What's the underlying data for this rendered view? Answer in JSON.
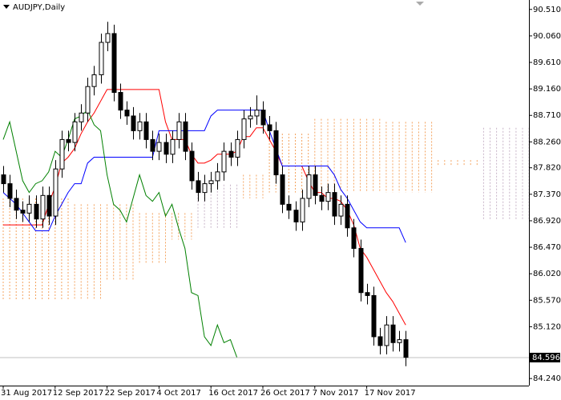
{
  "chart_data": {
    "type": "candlestick",
    "title": "AUDJPY,Daily",
    "categories": [
      "31 Aug 2017",
      null,
      null,
      null,
      null,
      null,
      null,
      null,
      "12 Sep 2017",
      null,
      null,
      null,
      null,
      null,
      null,
      null,
      "22 Sep 2017",
      null,
      null,
      null,
      null,
      null,
      null,
      null,
      "4 Oct 2017",
      null,
      null,
      null,
      null,
      null,
      null,
      null,
      "16 Oct 2017",
      null,
      null,
      null,
      null,
      null,
      null,
      null,
      "26 Oct 2017",
      null,
      null,
      null,
      null,
      null,
      null,
      null,
      "7 Nov 2017",
      null,
      null,
      null,
      null,
      null,
      null,
      null,
      "17 Nov 2017",
      null,
      null,
      null,
      null,
      null,
      null,
      null,
      null,
      null,
      null,
      null,
      null,
      null,
      null,
      null,
      null,
      null,
      null,
      null,
      null,
      null,
      null,
      null,
      null,
      null,
      null,
      null
    ],
    "open": [
      87.7,
      87.55,
      87.3,
      87.1,
      87.05,
      87.2,
      86.95,
      87.35,
      87.0,
      87.8,
      88.3,
      88.25,
      88.6,
      88.75,
      89.2,
      89.4,
      89.95,
      90.1,
      89.1,
      88.8,
      88.7,
      88.45,
      88.6,
      88.3,
      88.1,
      88.25,
      88.05,
      88.3,
      88.6,
      88.1,
      87.6,
      87.4,
      87.55,
      87.6,
      87.75,
      88.1,
      88.0,
      88.3,
      88.65,
      88.7,
      88.8,
      88.55,
      88.45,
      87.7,
      87.2,
      87.1,
      86.9,
      87.3,
      87.7,
      87.35,
      87.25,
      87.4,
      87.0,
      87.2,
      86.8,
      86.45,
      85.7,
      85.65,
      84.95,
      84.8,
      85.15,
      84.85,
      84.9,
      null,
      null,
      null,
      null,
      null,
      null,
      null,
      null,
      null,
      null,
      null,
      null,
      null,
      null,
      null,
      null,
      null,
      null,
      null,
      null,
      null
    ],
    "high": [
      87.85,
      87.7,
      87.45,
      87.25,
      87.35,
      87.35,
      87.5,
      87.5,
      87.95,
      88.45,
      88.45,
      88.75,
      88.9,
      89.35,
      89.55,
      90.1,
      90.3,
      90.25,
      89.25,
      88.95,
      88.85,
      88.75,
      88.75,
      88.45,
      88.4,
      88.4,
      88.45,
      88.75,
      88.75,
      88.25,
      87.75,
      87.7,
      87.75,
      87.9,
      88.25,
      88.25,
      88.45,
      88.8,
      88.85,
      89.05,
      88.95,
      88.7,
      88.6,
      87.85,
      87.35,
      87.25,
      87.45,
      87.85,
      87.85,
      87.5,
      87.55,
      87.55,
      87.35,
      87.35,
      86.95,
      86.6,
      85.85,
      85.8,
      85.1,
      85.3,
      85.3,
      85.05,
      85.05,
      null,
      null,
      null,
      null,
      null,
      null,
      null,
      null,
      null,
      null,
      null,
      null,
      null,
      null,
      null,
      null,
      null,
      null,
      null,
      null,
      null
    ],
    "low": [
      87.4,
      87.15,
      86.95,
      86.9,
      86.9,
      86.8,
      86.8,
      86.85,
      86.85,
      87.65,
      88.1,
      88.1,
      88.45,
      88.6,
      89.05,
      89.25,
      89.8,
      88.95,
      88.65,
      88.55,
      88.3,
      88.3,
      88.15,
      87.95,
      87.95,
      87.9,
      87.9,
      88.15,
      87.95,
      87.45,
      87.25,
      87.25,
      87.4,
      87.45,
      87.6,
      87.85,
      87.85,
      88.15,
      88.5,
      88.55,
      88.4,
      88.3,
      87.55,
      87.05,
      86.95,
      86.75,
      86.75,
      87.15,
      87.2,
      87.1,
      87.1,
      86.85,
      86.85,
      86.65,
      86.3,
      85.55,
      85.5,
      84.8,
      84.65,
      84.65,
      84.7,
      84.7,
      84.45,
      null,
      null,
      null,
      null,
      null,
      null,
      null,
      null,
      null,
      null,
      null,
      null,
      null,
      null,
      null,
      null,
      null,
      null,
      null,
      null,
      null
    ],
    "close": [
      87.55,
      87.3,
      87.1,
      87.05,
      87.2,
      86.95,
      87.35,
      87.0,
      87.8,
      88.3,
      88.25,
      88.6,
      88.75,
      89.2,
      89.4,
      89.95,
      90.1,
      89.1,
      88.8,
      88.7,
      88.45,
      88.6,
      88.3,
      88.1,
      88.25,
      88.05,
      88.3,
      88.6,
      88.1,
      87.6,
      87.4,
      87.55,
      87.6,
      87.75,
      88.1,
      88.0,
      88.3,
      88.65,
      88.7,
      88.8,
      88.55,
      88.45,
      87.7,
      87.2,
      87.1,
      86.9,
      87.3,
      87.7,
      87.35,
      87.25,
      87.4,
      87.0,
      87.2,
      86.8,
      86.45,
      85.7,
      85.65,
      84.95,
      84.8,
      85.15,
      84.85,
      84.9,
      84.6,
      null,
      null,
      null,
      null,
      null,
      null,
      null,
      null,
      null,
      null,
      null,
      null,
      null,
      null,
      null,
      null,
      null,
      null,
      null,
      null,
      null
    ],
    "up_color": "#ffffff",
    "down_color": "#000000",
    "lines": [
      {
        "color": "#ff0000",
        "values": [
          86.85,
          86.85,
          86.85,
          86.85,
          86.85,
          86.85,
          86.85,
          87.2,
          87.5,
          87.9,
          88.0,
          88.15,
          88.4,
          88.6,
          88.75,
          88.95,
          89.15,
          89.15,
          89.15,
          89.15,
          89.15,
          89.15,
          89.15,
          89.15,
          89.15,
          88.6,
          88.3,
          88.3,
          88.3,
          88.05,
          87.9,
          87.9,
          87.95,
          88.05,
          88.05,
          88.05,
          88.1,
          88.35,
          88.35,
          88.5,
          88.5,
          88.3,
          88.1,
          87.85,
          87.85,
          87.85,
          87.85,
          87.6,
          87.4,
          87.4,
          87.3,
          87.3,
          87.25,
          87.1,
          86.85,
          86.45,
          86.3,
          86.1,
          85.9,
          85.7,
          85.55,
          85.35,
          85.15,
          null,
          null,
          null,
          null,
          null,
          null,
          null,
          null,
          null,
          null,
          null,
          null,
          null,
          null,
          null,
          null,
          null,
          null,
          null,
          null,
          null
        ]
      },
      {
        "color": "#0000ff",
        "values": [
          87.4,
          87.3,
          87.2,
          87.05,
          86.9,
          86.75,
          86.75,
          86.75,
          87.0,
          87.2,
          87.4,
          87.55,
          87.55,
          87.9,
          88.0,
          88.0,
          88.0,
          88.0,
          88.0,
          88.0,
          88.0,
          88.0,
          88.0,
          88.0,
          88.45,
          88.45,
          88.45,
          88.45,
          88.45,
          88.45,
          88.45,
          88.45,
          88.7,
          88.8,
          88.8,
          88.8,
          88.8,
          88.8,
          88.8,
          88.8,
          88.8,
          88.45,
          88.15,
          87.85,
          87.85,
          87.85,
          87.85,
          87.85,
          87.85,
          87.85,
          87.85,
          87.7,
          87.45,
          87.3,
          87.1,
          86.9,
          86.8,
          86.8,
          86.8,
          86.8,
          86.8,
          86.8,
          86.55,
          null,
          null,
          null,
          null,
          null,
          null,
          null,
          null,
          null,
          null,
          null,
          null,
          null,
          null,
          null,
          null,
          null,
          null,
          null,
          null,
          null
        ]
      },
      {
        "color": "#008000",
        "values": [
          88.3,
          88.6,
          88.1,
          87.6,
          87.4,
          87.55,
          87.6,
          87.75,
          88.1,
          88.0,
          88.3,
          88.65,
          88.7,
          88.8,
          88.55,
          88.45,
          87.7,
          87.2,
          87.1,
          86.9,
          87.3,
          87.7,
          87.35,
          87.25,
          87.4,
          87.0,
          87.2,
          86.8,
          86.45,
          85.7,
          85.65,
          84.95,
          84.8,
          85.15,
          84.85,
          84.9,
          84.6,
          null,
          null,
          null,
          null,
          null,
          null,
          null,
          null,
          null,
          null,
          null,
          null,
          null,
          null,
          null,
          null,
          null,
          null,
          null,
          null,
          null,
          null,
          null,
          null,
          null,
          null,
          null,
          null,
          null,
          null,
          null,
          null,
          null,
          null,
          null,
          null,
          null,
          null,
          null,
          null,
          null,
          null,
          null,
          null,
          null,
          null,
          null
        ]
      }
    ],
    "cloud": {
      "up_color": "#f4a460",
      "down_color": "#c8b4c8",
      "span_a": [
        87.3,
        87.3,
        87.3,
        87.3,
        87.3,
        87.3,
        87.3,
        87.3,
        87.3,
        87.3,
        87.3,
        87.2,
        87.2,
        87.2,
        87.2,
        87.2,
        87.2,
        87.2,
        87.2,
        87.2,
        87.2,
        87.05,
        87.05,
        87.05,
        87.05,
        87.05,
        87.05,
        87.05,
        87.05,
        87.05,
        86.8,
        86.8,
        86.8,
        86.8,
        86.8,
        86.8,
        86.8,
        87.7,
        87.7,
        87.7,
        87.7,
        88.4,
        88.4,
        88.4,
        88.4,
        88.4,
        88.4,
        88.4,
        88.65,
        88.65,
        88.65,
        88.65,
        88.65,
        88.65,
        88.65,
        88.65,
        88.65,
        88.65,
        88.65,
        88.6,
        88.6,
        88.6,
        88.6,
        88.6,
        88.6,
        88.6,
        88.6,
        87.95,
        87.95,
        87.95,
        87.95,
        87.95,
        87.95,
        87.95,
        86.95,
        86.95,
        86.95,
        86.95,
        86.95,
        86.95,
        86.95,
        86.95,
        86.95,
        86.95
      ],
      "span_b": [
        85.57,
        85.57,
        85.57,
        85.57,
        85.57,
        85.57,
        85.57,
        85.57,
        85.57,
        85.57,
        85.57,
        85.57,
        85.57,
        85.57,
        85.57,
        85.57,
        85.9,
        85.9,
        85.9,
        85.9,
        85.9,
        86.2,
        86.2,
        86.2,
        86.2,
        86.2,
        86.6,
        86.6,
        86.6,
        86.6,
        87.55,
        87.55,
        87.55,
        87.55,
        87.55,
        87.55,
        87.55,
        87.3,
        87.3,
        87.3,
        87.3,
        87.4,
        87.4,
        87.4,
        87.4,
        87.4,
        87.4,
        87.4,
        87.4,
        87.4,
        87.4,
        87.4,
        87.4,
        87.4,
        87.4,
        87.4,
        87.4,
        87.4,
        87.4,
        87.4,
        87.4,
        87.4,
        87.4,
        87.4,
        87.4,
        87.4,
        87.4,
        87.85,
        87.85,
        87.85,
        87.85,
        87.85,
        87.85,
        87.85,
        88.5,
        88.5,
        88.5,
        88.5,
        88.5,
        88.5,
        88.5,
        88.5,
        88.5,
        88.5
      ]
    },
    "current_price": 84.596,
    "ylim": [
      84.12,
      90.67
    ],
    "yticks": [
      {
        "value": 90.51,
        "label": "90.510"
      },
      {
        "value": 90.06,
        "label": "90.060"
      },
      {
        "value": 89.61,
        "label": "89.610"
      },
      {
        "value": 89.16,
        "label": "89.160"
      },
      {
        "value": 88.71,
        "label": "88.710"
      },
      {
        "value": 88.26,
        "label": "88.260"
      },
      {
        "value": 87.82,
        "label": "87.820"
      },
      {
        "value": 87.37,
        "label": "87.370"
      },
      {
        "value": 86.92,
        "label": "86.920"
      },
      {
        "value": 86.47,
        "label": "86.470"
      },
      {
        "value": 86.02,
        "label": "86.020"
      },
      {
        "value": 85.57,
        "label": "85.570"
      },
      {
        "value": 85.12,
        "label": "85.120"
      },
      {
        "value": 84.24,
        "label": "84.240"
      }
    ]
  }
}
